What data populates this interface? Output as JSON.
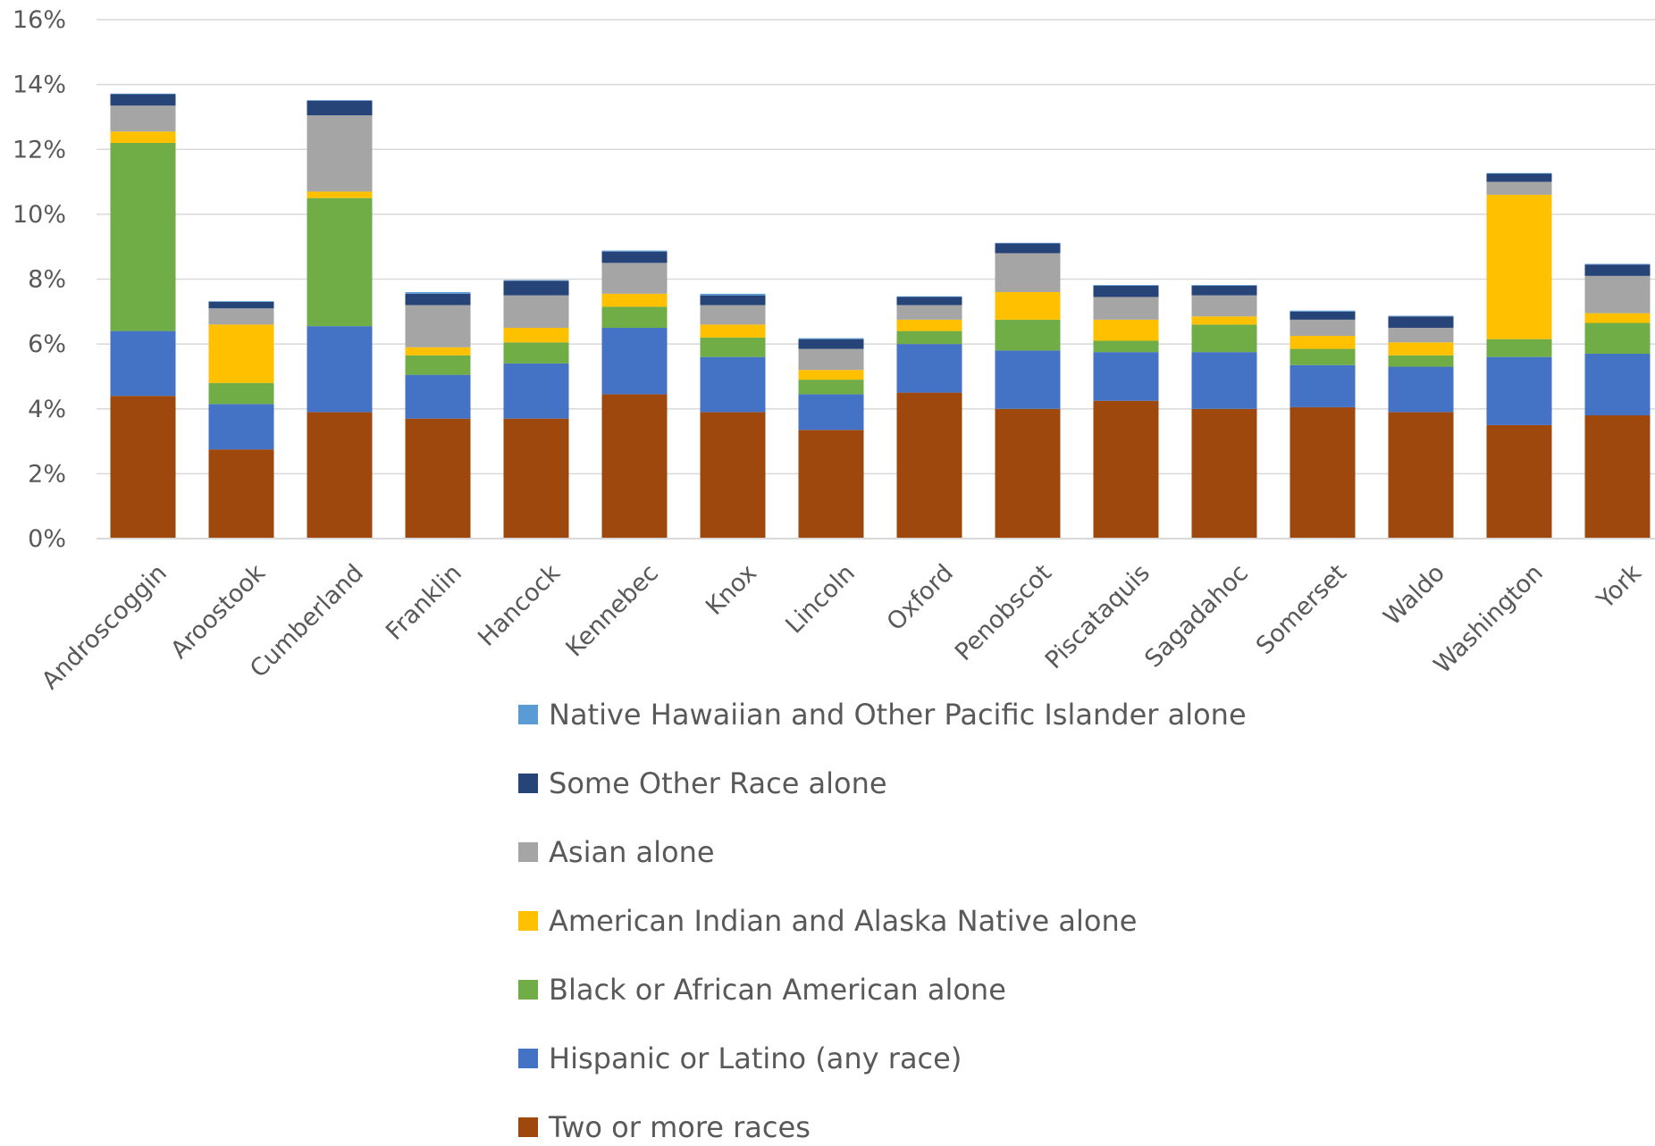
{
  "chart_data": {
    "type": "bar",
    "stacked": true,
    "title": "",
    "xlabel": "",
    "ylabel": "",
    "ylim": [
      0,
      16
    ],
    "y_ticks": [
      "0%",
      "2%",
      "4%",
      "6%",
      "8%",
      "10%",
      "12%",
      "14%",
      "16%"
    ],
    "grid": true,
    "legend_position": "bottom",
    "categories": [
      "Androscoggin",
      "Aroostook",
      "Cumberland",
      "Franklin",
      "Hancock",
      "Kennebec",
      "Knox",
      "Lincoln",
      "Oxford",
      "Penobscot",
      "Piscataquis",
      "Sagadahoc",
      "Somerset",
      "Waldo",
      "Washington",
      "York"
    ],
    "series": [
      {
        "name": "Two or more races",
        "color": "#9E480E",
        "values": [
          4.4,
          2.75,
          3.9,
          3.7,
          3.7,
          4.45,
          3.9,
          3.35,
          4.5,
          4.0,
          4.25,
          4.0,
          4.05,
          3.9,
          3.5,
          3.8
        ]
      },
      {
        "name": "Hispanic or Latino (any race)",
        "color": "#4472C4",
        "values": [
          2.0,
          1.4,
          2.65,
          1.35,
          1.7,
          2.05,
          1.7,
          1.1,
          1.5,
          1.8,
          1.5,
          1.75,
          1.3,
          1.4,
          2.1,
          1.9
        ]
      },
      {
        "name": "Black or African American alone",
        "color": "#70AD47",
        "values": [
          5.8,
          0.65,
          3.95,
          0.6,
          0.65,
          0.65,
          0.6,
          0.45,
          0.4,
          0.95,
          0.35,
          0.85,
          0.5,
          0.35,
          0.55,
          0.95
        ]
      },
      {
        "name": "American Indian and Alaska Native alone",
        "color": "#FFC000",
        "values": [
          0.35,
          1.8,
          0.2,
          0.25,
          0.45,
          0.4,
          0.4,
          0.3,
          0.35,
          0.85,
          0.65,
          0.25,
          0.4,
          0.4,
          4.45,
          0.3
        ]
      },
      {
        "name": "Asian alone",
        "color": "#A5A5A5",
        "values": [
          0.8,
          0.5,
          2.35,
          1.3,
          1.0,
          0.95,
          0.6,
          0.65,
          0.45,
          1.2,
          0.7,
          0.65,
          0.5,
          0.45,
          0.4,
          1.15
        ]
      },
      {
        "name": "Some Other Race alone",
        "color": "#264478",
        "values": [
          0.35,
          0.2,
          0.45,
          0.35,
          0.45,
          0.35,
          0.3,
          0.3,
          0.25,
          0.3,
          0.35,
          0.3,
          0.25,
          0.35,
          0.25,
          0.35
        ]
      },
      {
        "name": "Native Hawaiian and Other Pacific Islander alone",
        "color": "#5B9BD5",
        "values": [
          0.02,
          0.02,
          0.02,
          0.05,
          0.02,
          0.03,
          0.05,
          0.03,
          0.02,
          0.02,
          0.02,
          0.02,
          0.03,
          0.02,
          0.02,
          0.02
        ]
      }
    ],
    "legend_order": [
      "Native Hawaiian and Other Pacific Islander alone",
      "Some Other Race alone",
      "Asian alone",
      "American Indian and Alaska Native alone",
      "Black or African American alone",
      "Hispanic or Latino (any race)",
      "Two or more races"
    ]
  }
}
